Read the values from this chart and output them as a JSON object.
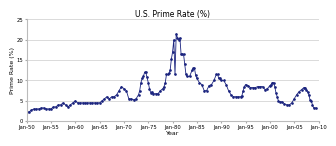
{
  "title": "U.S. Prime Rate (%)",
  "xlabel": "Year",
  "ylabel": "Prime Rate (%)",
  "xlim_start": 1950,
  "xlim_end": 2010,
  "ylim": [
    0,
    25
  ],
  "yticks": [
    0,
    5,
    10,
    15,
    20,
    25
  ],
  "xtick_labels": [
    "Jan-50",
    "Jan-55",
    "Jan-60",
    "Jan-65",
    "Jan-70",
    "Jan-75",
    "Jan-80",
    "Jan-85",
    "Jan-90",
    "Jan-95",
    "Jan-00",
    "Jan-05",
    "Jan-10"
  ],
  "xtick_years": [
    1950,
    1955,
    1960,
    1965,
    1970,
    1975,
    1980,
    1985,
    1990,
    1995,
    2000,
    2005,
    2010
  ],
  "line_color": "#1a237e",
  "marker": ".",
  "markersize": 1.8,
  "linewidth": 0.6,
  "bg_color": "#ffffff",
  "grid_color": "#cccccc",
  "title_fontsize": 5.5,
  "label_fontsize": 4.5,
  "tick_fontsize": 3.8,
  "data": [
    [
      1950.0,
      2.25
    ],
    [
      1950.5,
      2.25
    ],
    [
      1951.0,
      2.75
    ],
    [
      1951.5,
      3.0
    ],
    [
      1952.0,
      3.0
    ],
    [
      1952.5,
      3.0
    ],
    [
      1953.0,
      3.25
    ],
    [
      1953.5,
      3.25
    ],
    [
      1954.0,
      3.0
    ],
    [
      1954.5,
      3.0
    ],
    [
      1955.0,
      3.0
    ],
    [
      1955.5,
      3.5
    ],
    [
      1956.0,
      3.5
    ],
    [
      1956.5,
      4.0
    ],
    [
      1957.0,
      4.0
    ],
    [
      1957.5,
      4.5
    ],
    [
      1958.0,
      4.0
    ],
    [
      1958.5,
      3.5
    ],
    [
      1959.0,
      4.0
    ],
    [
      1959.5,
      4.5
    ],
    [
      1960.0,
      5.0
    ],
    [
      1960.5,
      4.5
    ],
    [
      1961.0,
      4.5
    ],
    [
      1961.5,
      4.5
    ],
    [
      1962.0,
      4.5
    ],
    [
      1962.5,
      4.5
    ],
    [
      1963.0,
      4.5
    ],
    [
      1963.5,
      4.5
    ],
    [
      1964.0,
      4.5
    ],
    [
      1964.5,
      4.5
    ],
    [
      1965.0,
      4.5
    ],
    [
      1965.5,
      5.0
    ],
    [
      1966.0,
      5.5
    ],
    [
      1966.5,
      6.0
    ],
    [
      1967.0,
      5.5
    ],
    [
      1967.5,
      6.0
    ],
    [
      1968.0,
      6.0
    ],
    [
      1968.5,
      6.5
    ],
    [
      1969.0,
      7.5
    ],
    [
      1969.5,
      8.5
    ],
    [
      1970.0,
      8.0
    ],
    [
      1970.5,
      7.5
    ],
    [
      1971.0,
      5.5
    ],
    [
      1971.5,
      5.5
    ],
    [
      1972.0,
      5.25
    ],
    [
      1972.5,
      5.5
    ],
    [
      1973.0,
      6.5
    ],
    [
      1973.25,
      7.5
    ],
    [
      1973.5,
      9.5
    ],
    [
      1973.75,
      10.5
    ],
    [
      1974.0,
      11.0
    ],
    [
      1974.25,
      12.0
    ],
    [
      1974.5,
      12.0
    ],
    [
      1974.75,
      10.75
    ],
    [
      1975.0,
      9.5
    ],
    [
      1975.25,
      8.0
    ],
    [
      1975.5,
      7.0
    ],
    [
      1975.75,
      7.25
    ],
    [
      1976.0,
      6.75
    ],
    [
      1976.5,
      6.75
    ],
    [
      1977.0,
      6.75
    ],
    [
      1977.5,
      7.5
    ],
    [
      1978.0,
      8.0
    ],
    [
      1978.25,
      8.5
    ],
    [
      1978.5,
      9.5
    ],
    [
      1978.75,
      11.5
    ],
    [
      1979.0,
      11.5
    ],
    [
      1979.25,
      11.75
    ],
    [
      1979.5,
      12.5
    ],
    [
      1979.75,
      15.25
    ],
    [
      1980.0,
      17.0
    ],
    [
      1980.25,
      20.0
    ],
    [
      1980.5,
      11.5
    ],
    [
      1980.75,
      21.5
    ],
    [
      1981.0,
      20.5
    ],
    [
      1981.25,
      20.0
    ],
    [
      1981.5,
      20.5
    ],
    [
      1981.75,
      16.5
    ],
    [
      1982.0,
      16.5
    ],
    [
      1982.25,
      16.5
    ],
    [
      1982.5,
      14.0
    ],
    [
      1982.75,
      11.5
    ],
    [
      1983.0,
      11.0
    ],
    [
      1983.5,
      11.0
    ],
    [
      1984.0,
      12.5
    ],
    [
      1984.25,
      13.0
    ],
    [
      1984.5,
      13.0
    ],
    [
      1984.75,
      11.25
    ],
    [
      1985.0,
      10.5
    ],
    [
      1985.5,
      9.5
    ],
    [
      1986.0,
      9.0
    ],
    [
      1986.5,
      7.5
    ],
    [
      1987.0,
      7.5
    ],
    [
      1987.5,
      8.75
    ],
    [
      1988.0,
      9.0
    ],
    [
      1988.5,
      10.0
    ],
    [
      1989.0,
      11.5
    ],
    [
      1989.25,
      11.5
    ],
    [
      1989.5,
      10.5
    ],
    [
      1989.75,
      10.5
    ],
    [
      1990.0,
      10.0
    ],
    [
      1990.5,
      10.0
    ],
    [
      1991.0,
      9.0
    ],
    [
      1991.5,
      7.5
    ],
    [
      1992.0,
      6.5
    ],
    [
      1992.5,
      6.0
    ],
    [
      1993.0,
      6.0
    ],
    [
      1993.5,
      6.0
    ],
    [
      1994.0,
      6.0
    ],
    [
      1994.25,
      6.25
    ],
    [
      1994.5,
      7.5
    ],
    [
      1994.75,
      8.5
    ],
    [
      1995.0,
      9.0
    ],
    [
      1995.5,
      8.75
    ],
    [
      1996.0,
      8.25
    ],
    [
      1996.5,
      8.25
    ],
    [
      1997.0,
      8.25
    ],
    [
      1997.5,
      8.5
    ],
    [
      1998.0,
      8.5
    ],
    [
      1998.5,
      8.5
    ],
    [
      1999.0,
      7.75
    ],
    [
      1999.5,
      8.0
    ],
    [
      2000.0,
      8.75
    ],
    [
      2000.25,
      9.0
    ],
    [
      2000.5,
      9.5
    ],
    [
      2000.75,
      9.5
    ],
    [
      2001.0,
      8.5
    ],
    [
      2001.25,
      7.0
    ],
    [
      2001.5,
      6.0
    ],
    [
      2001.75,
      5.0
    ],
    [
      2002.0,
      4.75
    ],
    [
      2002.5,
      4.75
    ],
    [
      2003.0,
      4.25
    ],
    [
      2003.5,
      4.0
    ],
    [
      2004.0,
      4.0
    ],
    [
      2004.5,
      4.5
    ],
    [
      2005.0,
      5.5
    ],
    [
      2005.5,
      6.5
    ],
    [
      2006.0,
      7.25
    ],
    [
      2006.5,
      7.75
    ],
    [
      2007.0,
      8.25
    ],
    [
      2007.25,
      8.25
    ],
    [
      2007.5,
      7.75
    ],
    [
      2007.75,
      7.25
    ],
    [
      2008.0,
      6.5
    ],
    [
      2008.25,
      5.25
    ],
    [
      2008.5,
      5.0
    ],
    [
      2008.75,
      4.0
    ],
    [
      2009.0,
      3.25
    ],
    [
      2009.5,
      3.25
    ]
  ]
}
